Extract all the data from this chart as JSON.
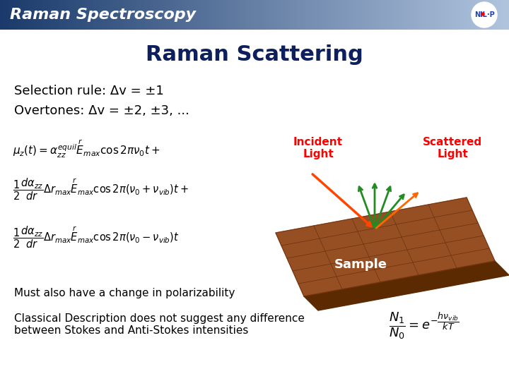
{
  "title": "Raman Scattering",
  "header_text": "Raman Spectroscopy",
  "header_bg_color_left": "#1a3a6b",
  "header_bg_color_right": "#b0c4de",
  "header_text_color": "#ffffff",
  "slide_bg_color": "#ffffff",
  "title_color": "#0d1f5c",
  "body_text_color": "#000000",
  "selection_rule": "Selection rule: Δv = ±1",
  "overtones": "Overtones: Δv = ±2, ±3, ...",
  "bottom_text1": "Must also have a change in polarizability",
  "bottom_text2": "Classical Description does not suggest any difference\nbetween Stokes and Anti-Stokes intensities",
  "incident_label": "Incident\nLight",
  "scattered_label": "Scattered\nLight",
  "sample_label": "Sample"
}
